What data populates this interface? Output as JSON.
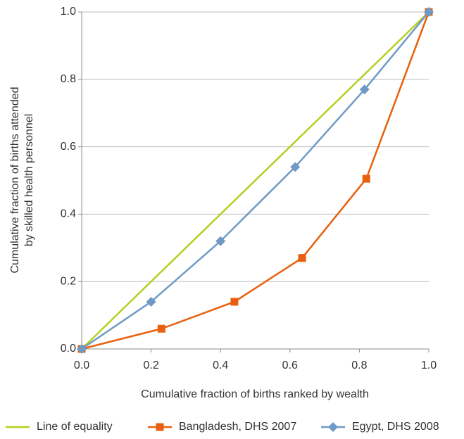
{
  "chart_data": {
    "type": "line",
    "title": "",
    "xlabel": "Cumulative fraction of births ranked by wealth",
    "ylabel_lines": [
      "Cumulative fraction of births attended",
      "by skilled health personnel"
    ],
    "xlim": [
      0,
      1
    ],
    "ylim": [
      0,
      1
    ],
    "xticks": [
      "0.0",
      "0.2",
      "0.4",
      "0.6",
      "0.8",
      "1.0"
    ],
    "yticks": [
      "0.0",
      "0.2",
      "0.4",
      "0.6",
      "0.8",
      "1.0"
    ],
    "grid": "horizontal",
    "legend_position": "bottom",
    "series": [
      {
        "name": "Line of equality",
        "color": "#b5cf1f",
        "marker": "none",
        "points": [
          [
            0,
            0
          ],
          [
            1,
            1
          ]
        ]
      },
      {
        "name": "Bangladesh, DHS 2007",
        "color": "#e8600d",
        "marker": "square",
        "points": [
          [
            0,
            0
          ],
          [
            0.23,
            0.06
          ],
          [
            0.44,
            0.14
          ],
          [
            0.635,
            0.27
          ],
          [
            0.82,
            0.505
          ],
          [
            1,
            1
          ]
        ]
      },
      {
        "name": "Egypt, DHS 2008",
        "color": "#6f9ac6",
        "marker": "diamond",
        "points": [
          [
            0,
            0
          ],
          [
            0.2,
            0.14
          ],
          [
            0.4,
            0.32
          ],
          [
            0.615,
            0.54
          ],
          [
            0.815,
            0.77
          ],
          [
            1,
            1
          ]
        ]
      }
    ]
  }
}
